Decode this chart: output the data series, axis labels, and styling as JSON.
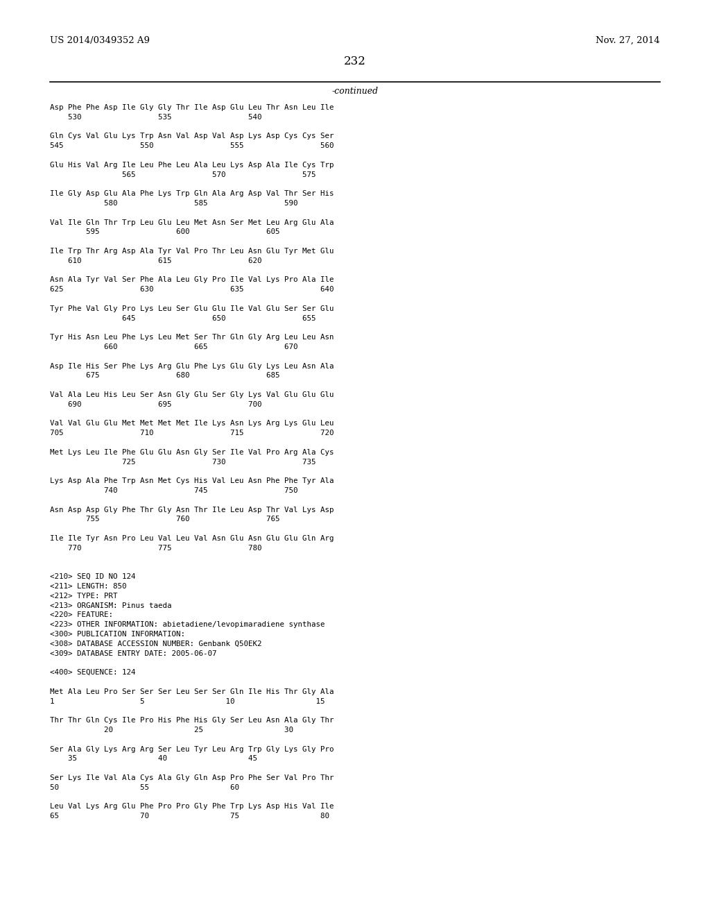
{
  "header_left": "US 2014/0349352 A9",
  "header_right": "Nov. 27, 2014",
  "page_number": "232",
  "continued_label": "-continued",
  "background_color": "#ffffff",
  "text_color": "#000000",
  "content_lines": [
    "Asp Phe Phe Asp Ile Gly Gly Thr Ile Asp Glu Leu Thr Asn Leu Ile",
    "    530                 535                 540",
    "",
    "Gln Cys Val Glu Lys Trp Asn Val Asp Val Asp Lys Asp Cys Cys Ser",
    "545                 550                 555                 560",
    "",
    "Glu His Val Arg Ile Leu Phe Leu Ala Leu Lys Asp Ala Ile Cys Trp",
    "                565                 570                 575",
    "",
    "Ile Gly Asp Glu Ala Phe Lys Trp Gln Ala Arg Asp Val Thr Ser His",
    "            580                 585                 590",
    "",
    "Val Ile Gln Thr Trp Leu Glu Leu Met Asn Ser Met Leu Arg Glu Ala",
    "        595                 600                 605",
    "",
    "Ile Trp Thr Arg Asp Ala Tyr Val Pro Thr Leu Asn Glu Tyr Met Glu",
    "    610                 615                 620",
    "",
    "Asn Ala Tyr Val Ser Phe Ala Leu Gly Pro Ile Val Lys Pro Ala Ile",
    "625                 630                 635                 640",
    "",
    "Tyr Phe Val Gly Pro Lys Leu Ser Glu Glu Ile Val Glu Ser Ser Glu",
    "                645                 650                 655",
    "",
    "Tyr His Asn Leu Phe Lys Leu Met Ser Thr Gln Gly Arg Leu Leu Asn",
    "            660                 665                 670",
    "",
    "Asp Ile His Ser Phe Lys Arg Glu Phe Lys Glu Gly Lys Leu Asn Ala",
    "        675                 680                 685",
    "",
    "Val Ala Leu His Leu Ser Asn Gly Glu Ser Gly Lys Val Glu Glu Glu",
    "    690                 695                 700",
    "",
    "Val Val Glu Glu Met Met Met Met Ile Lys Asn Lys Arg Lys Glu Leu",
    "705                 710                 715                 720",
    "",
    "Met Lys Leu Ile Phe Glu Glu Asn Gly Ser Ile Val Pro Arg Ala Cys",
    "                725                 730                 735",
    "",
    "Lys Asp Ala Phe Trp Asn Met Cys His Val Leu Asn Phe Phe Tyr Ala",
    "            740                 745                 750",
    "",
    "Asn Asp Asp Gly Phe Thr Gly Asn Thr Ile Leu Asp Thr Val Lys Asp",
    "        755                 760                 765",
    "",
    "Ile Ile Tyr Asn Pro Leu Val Leu Val Asn Glu Asn Glu Glu Gln Arg",
    "    770                 775                 780",
    "",
    "",
    "<210> SEQ ID NO 124",
    "<211> LENGTH: 850",
    "<212> TYPE: PRT",
    "<213> ORGANISM: Pinus taeda",
    "<220> FEATURE:",
    "<223> OTHER INFORMATION: abietadiene/levopimaradiene synthase",
    "<300> PUBLICATION INFORMATION:",
    "<308> DATABASE ACCESSION NUMBER: Genbank Q50EK2",
    "<309> DATABASE ENTRY DATE: 2005-06-07",
    "",
    "<400> SEQUENCE: 124",
    "",
    "Met Ala Leu Pro Ser Ser Ser Leu Ser Ser Gln Ile His Thr Gly Ala",
    "1                   5                  10                  15",
    "",
    "Thr Thr Gln Cys Ile Pro His Phe His Gly Ser Leu Asn Ala Gly Thr",
    "            20                  25                  30",
    "",
    "Ser Ala Gly Lys Arg Arg Ser Leu Tyr Leu Arg Trp Gly Lys Gly Pro",
    "    35                  40                  45",
    "",
    "Ser Lys Ile Val Ala Cys Ala Gly Gln Asp Pro Phe Ser Val Pro Thr",
    "50                  55                  60",
    "",
    "Leu Val Lys Arg Glu Phe Pro Pro Gly Phe Trp Lys Asp His Val Ile",
    "65                  70                  75                  80"
  ]
}
